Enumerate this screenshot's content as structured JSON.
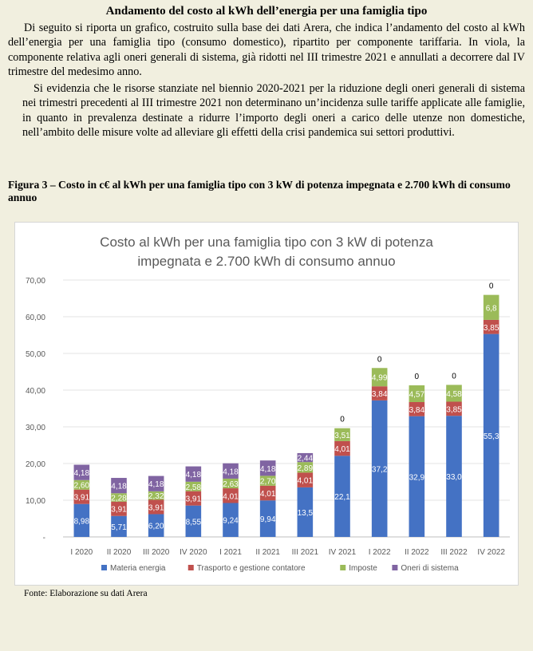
{
  "page": {
    "heading": "Andamento del costo al kWh dell’energia per una famiglia tipo",
    "paragraph1": "Di seguito si riporta un grafico, costruito sulla base dei dati Arera, che indica l’andamento del costo al kWh dell’energia per una famiglia tipo (consumo domestico), ripartito per componente tariffaria. In viola, la componente relativa agli oneri generali di sistema, già ridotti nel III trimestre 2021 e annullati a decorrere dal IV trimestre del medesimo anno.",
    "paragraph2": "Si evidenzia che le risorse stanziate nel biennio 2020-2021 per la riduzione degli oneri generali di sistema nei trimestri precedenti al III trimestre 2021 non determinano un’incidenza sulle tariffe applicate alle famiglie, in quanto in prevalenza destinate a ridurre l’importo degli oneri a carico delle utenze non domestiche, nell’ambito delle misure volte ad alleviare gli effetti della crisi pandemica sui settori produttivi.",
    "figure_title": "Figura 3 – Costo in c€ al kWh per una famiglia tipo con 3 kW di potenza impegnata e 2.700 kWh di consumo annuo",
    "source": "Fonte: Elaborazione su dati Arera"
  },
  "chart_data": {
    "type": "bar",
    "stacked": true,
    "title_lines": [
      "Costo al kWh per una famiglia tipo con 3 kW di potenza",
      "impegnata e 2.700 kWh di consumo annuo"
    ],
    "categories": [
      "I 2020",
      "II 2020",
      "III 2020",
      "IV 2020",
      "I 2021",
      "II 2021",
      "III 2021",
      "IV 2021",
      "I 2022",
      "II 2022",
      "III 2022",
      "IV 2022"
    ],
    "y_ticks": [
      "-",
      "10,00",
      "20,00",
      "30,00",
      "40,00",
      "50,00",
      "60,00",
      "70,00"
    ],
    "ylim": [
      0,
      70
    ],
    "grid": true,
    "legend_position": "bottom",
    "series": [
      {
        "name": "Materia energia",
        "color": "#4472c4",
        "values": [
          8.98,
          5.71,
          6.2,
          8.55,
          9.24,
          9.94,
          13.5,
          22.1,
          37.2,
          32.9,
          33.0,
          55.3
        ],
        "labels": [
          "8,98",
          "5,71",
          "6,20",
          "8,55",
          "9,24",
          "9,94",
          "13,5",
          "22,1",
          "37,2",
          "32,9",
          "33,0",
          "55,3"
        ]
      },
      {
        "name": "Trasporto e gestione contatore",
        "color": "#c0504d",
        "values": [
          3.91,
          3.91,
          3.91,
          3.91,
          4.01,
          4.01,
          4.01,
          4.01,
          3.84,
          3.84,
          3.85,
          3.85
        ],
        "labels": [
          "3,91",
          "3,91",
          "3,91",
          "3,91",
          "4,01",
          "4,01",
          "4,01",
          "4,01",
          "3,84",
          "3,84",
          "3,85",
          "3,85"
        ]
      },
      {
        "name": "Imposte",
        "color": "#9bbb59",
        "values": [
          2.6,
          2.28,
          2.32,
          2.58,
          2.63,
          2.7,
          2.89,
          3.51,
          4.99,
          4.57,
          4.58,
          6.8
        ],
        "labels": [
          "2,60",
          "2,28",
          "2,32",
          "2,58",
          "2,63",
          "2,70",
          "2,89",
          "3,51",
          "4,99",
          "4,57",
          "4,58",
          "6,8"
        ]
      },
      {
        "name": "Oneri di sistema",
        "color": "#8064a2",
        "values": [
          4.18,
          4.18,
          4.18,
          4.18,
          4.18,
          4.18,
          2.44,
          0,
          0,
          0,
          0,
          0
        ],
        "labels": [
          "4,18",
          "4,18",
          "4,18",
          "4,18",
          "4,18",
          "4,18",
          "2,44",
          "0",
          "0",
          "0",
          "0",
          "0"
        ]
      }
    ]
  }
}
